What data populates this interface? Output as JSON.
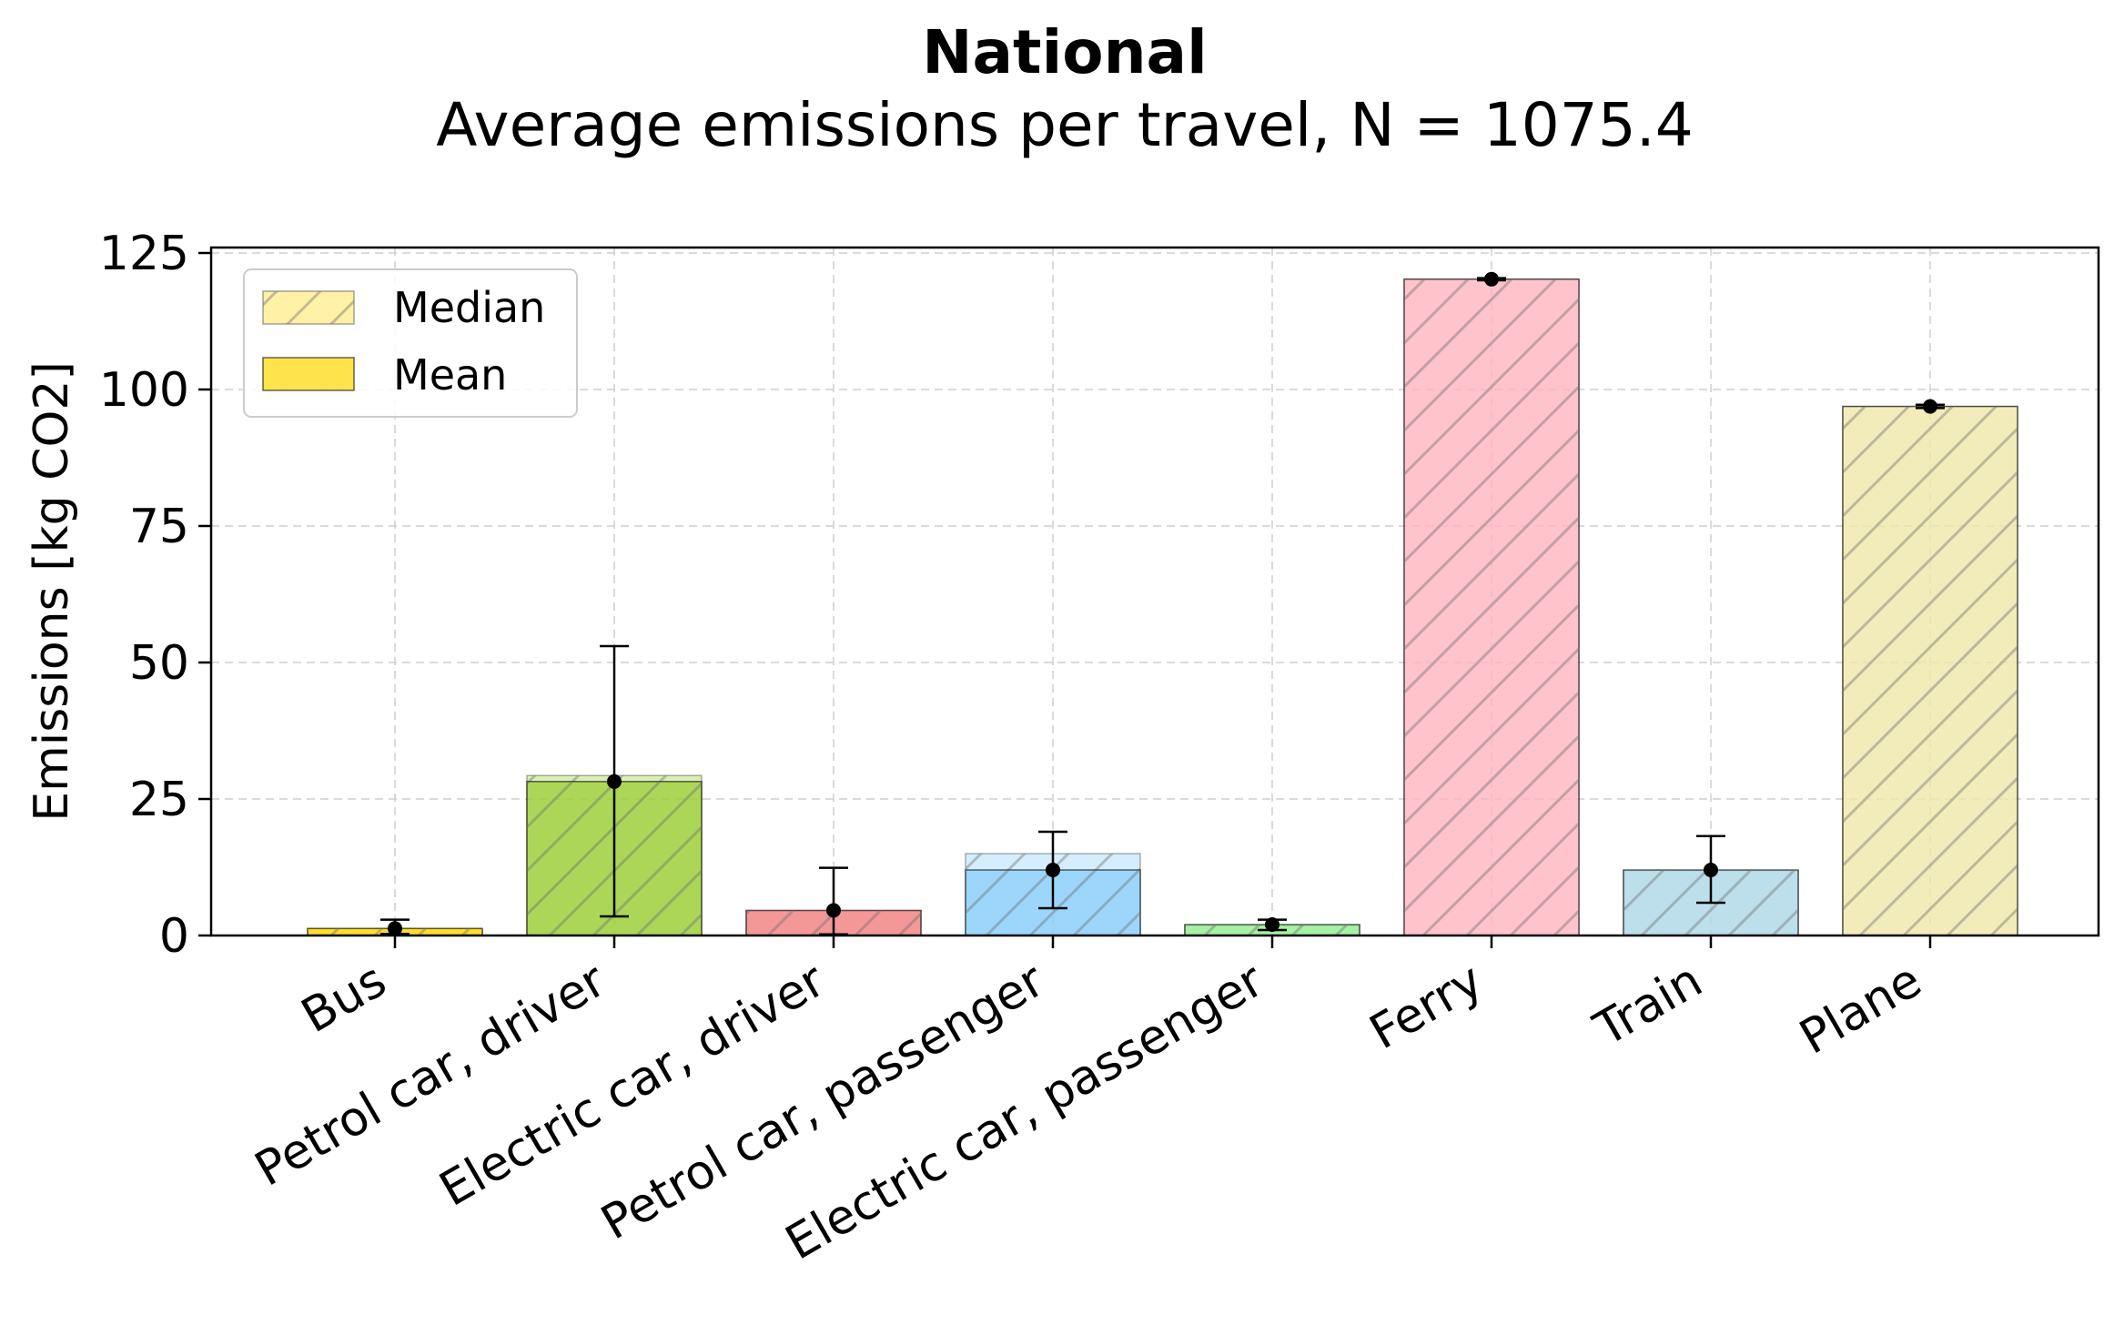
{
  "chart_data": {
    "type": "bar",
    "title": "National",
    "subtitle": "Average emissions per travel, N = 1075.4",
    "xlabel": "",
    "ylabel": "Emissions [kg CO2]",
    "ylim": [
      0,
      126
    ],
    "yticks": [
      0,
      25,
      50,
      75,
      100,
      125
    ],
    "grid": true,
    "legend": {
      "placement": "top-left",
      "entries": [
        {
          "label": "Median",
          "style": "hatched-light"
        },
        {
          "label": "Mean",
          "style": "solid"
        }
      ]
    },
    "categories": [
      "Bus",
      "Petrol car, driver",
      "Electric car, driver",
      "Petrol car, passenger",
      "Electric car, passenger",
      "Ferry",
      "Train",
      "Plane"
    ],
    "colors": [
      "#ffd700",
      "#9acd32",
      "#f08080",
      "#87cefa",
      "#90ee90",
      "#ffb6c1",
      "#add8e6",
      "#eee8aa"
    ],
    "series": [
      {
        "name": "Median",
        "values": [
          1.2,
          29.3,
          4.5,
          15.0,
          1.9,
          120.2,
          11.9,
          96.9
        ]
      },
      {
        "name": "Mean",
        "values": [
          1.3,
          28.2,
          4.6,
          12.0,
          2.0,
          120.2,
          12.0,
          96.9
        ]
      }
    ],
    "error_bars": {
      "lower": [
        0.3,
        3.5,
        0.2,
        5.0,
        1.0,
        120.0,
        6.0,
        96.6
      ],
      "upper": [
        2.9,
        53.0,
        12.4,
        19.0,
        2.9,
        120.4,
        18.2,
        97.2
      ]
    }
  }
}
